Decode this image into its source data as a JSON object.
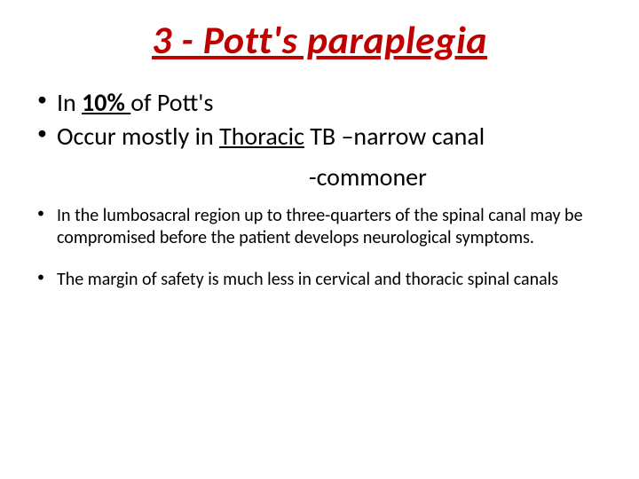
{
  "title": {
    "text": "3 -   Pott's  paraplegia",
    "color": "#c00000",
    "fontsize_pt": 44,
    "italic": true,
    "underline": true,
    "align": "center"
  },
  "primary_bullets": [
    {
      "segments": [
        {
          "text": "In ",
          "bold": false,
          "underline": false
        },
        {
          "text": "10% ",
          "bold": true,
          "underline": true
        },
        {
          "text": "of Pott's",
          "bold": false,
          "underline": false
        }
      ],
      "fontsize_pt": 28
    },
    {
      "segments": [
        {
          "text": "Occur mostly in ",
          "bold": false,
          "underline": false
        },
        {
          "text": "Thoracic",
          "bold": false,
          "underline": true
        },
        {
          "text": " TB –narrow canal",
          "bold": false,
          "underline": false
        }
      ],
      "fontsize_pt": 28
    }
  ],
  "sub_indent": {
    "text": "-commoner",
    "fontsize_pt": 28
  },
  "secondary_bullets": [
    {
      "text": "In the lumbosacral region up to three-quarters of the spinal canal may be compromised before the patient develops neurological symptoms.",
      "fontsize_pt": 20
    },
    {
      "text": " The margin of safety is much less in cervical and thoracic spinal canals",
      "fontsize_pt": 20
    }
  ],
  "colors": {
    "title": "#c00000",
    "body": "#000000",
    "background": "#ffffff"
  }
}
